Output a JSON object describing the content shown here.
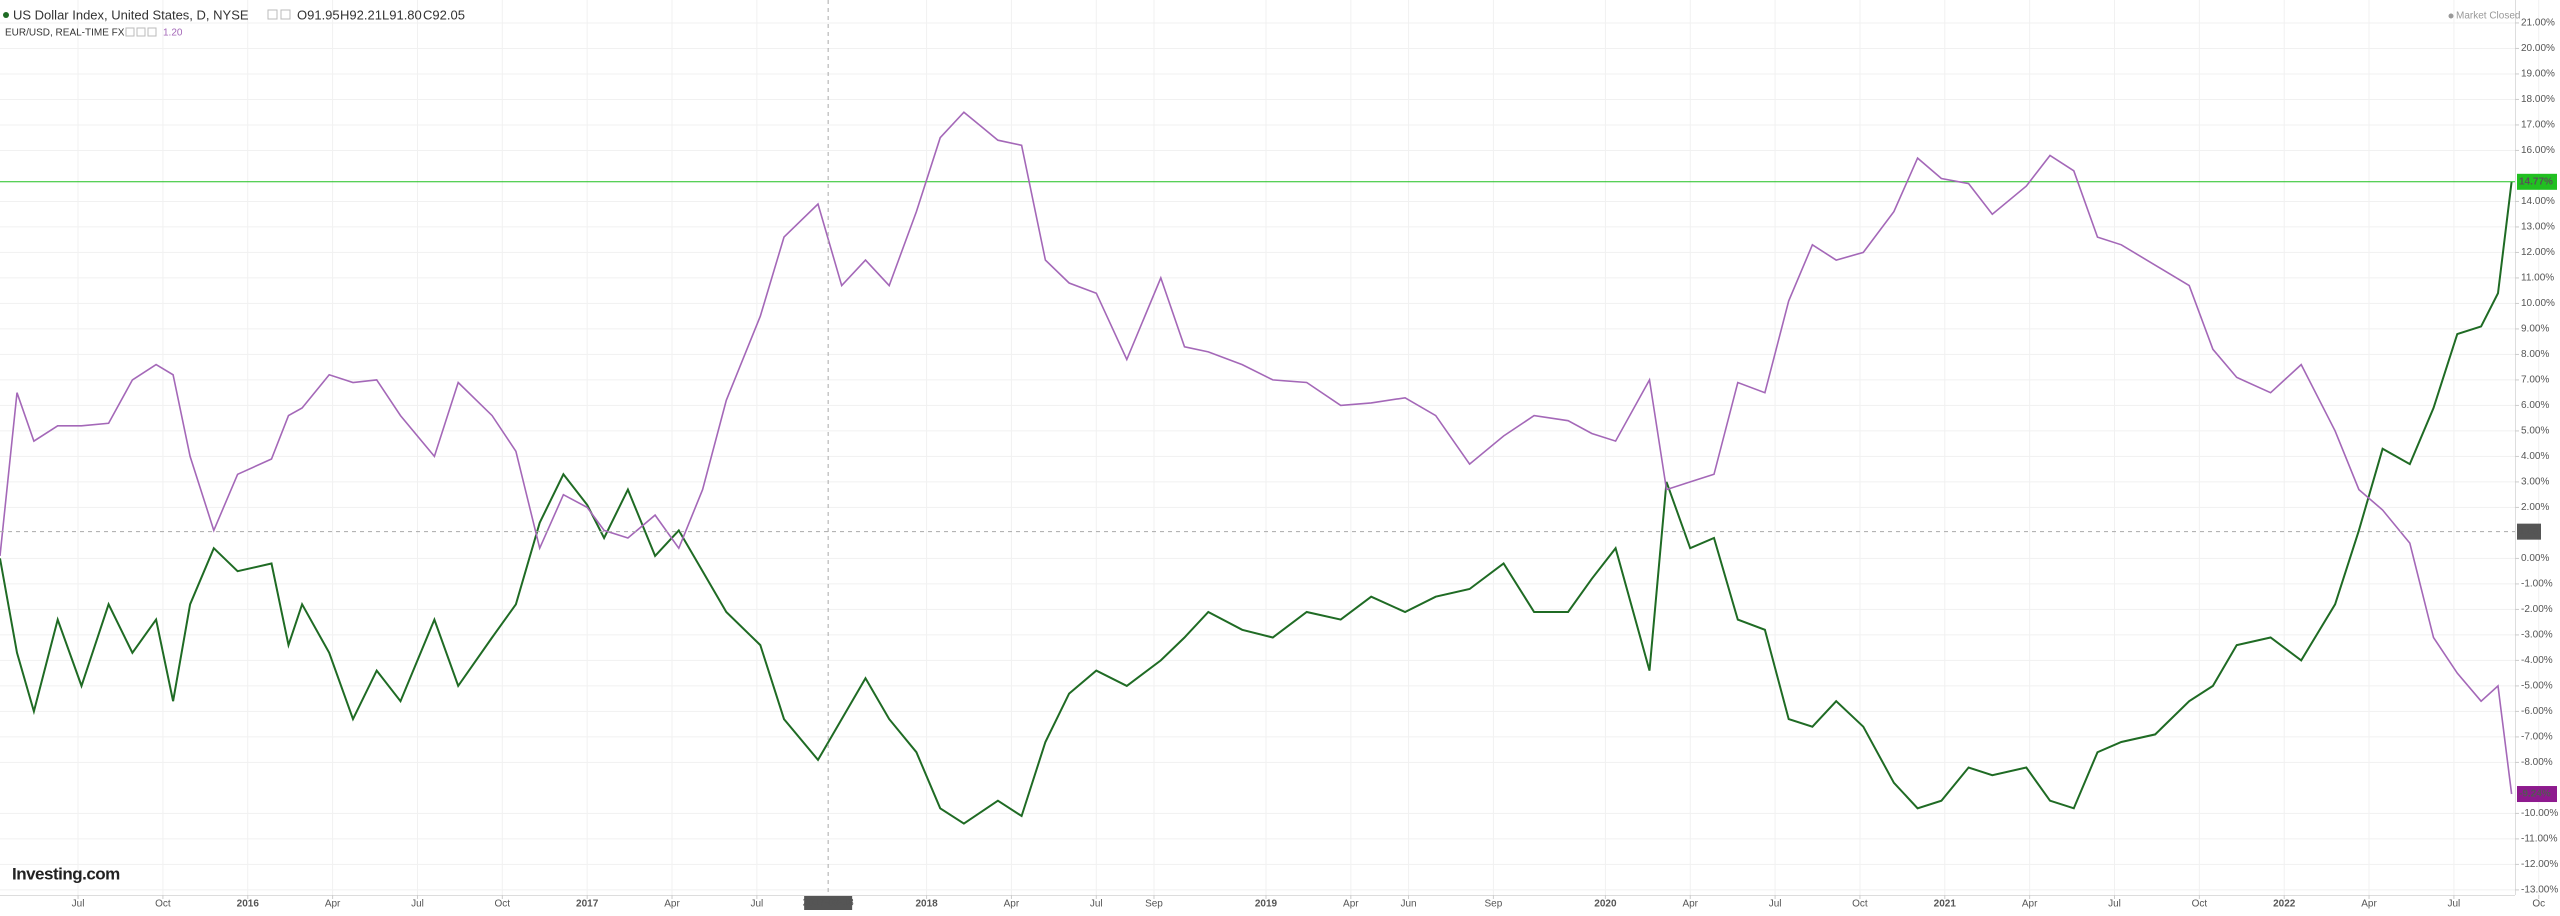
{
  "chart_data": {
    "type": "line",
    "ohlc": [
      "O91.95",
      "H92.21",
      "L91.80",
      "C92.05"
    ],
    "compare_last": "1.20",
    "status": "Market Closed",
    "watermark": "Investing.com",
    "xlim": [
      2015.27,
      2022.68
    ],
    "ylim": [
      -13.2,
      21.9
    ],
    "grid": true,
    "x": [
      2015.27,
      2015.32,
      2015.37,
      2015.44,
      2015.51,
      2015.59,
      2015.66,
      2015.73,
      2015.78,
      2015.83,
      2015.9,
      2015.97,
      2016.07,
      2016.12,
      2016.16,
      2016.24,
      2016.31,
      2016.38,
      2016.45,
      2016.55,
      2016.62,
      2016.72,
      2016.79,
      2016.86,
      2016.93,
      2017.0,
      2017.05,
      2017.12,
      2017.2,
      2017.27,
      2017.34,
      2017.41,
      2017.51,
      2017.58,
      2017.68,
      2017.75,
      2017.82,
      2017.89,
      2017.97,
      2018.04,
      2018.11,
      2018.21,
      2018.28,
      2018.35,
      2018.42,
      2018.5,
      2018.59,
      2018.69,
      2018.76,
      2018.83,
      2018.93,
      2019.02,
      2019.12,
      2019.22,
      2019.31,
      2019.41,
      2019.5,
      2019.6,
      2019.7,
      2019.79,
      2019.89,
      2019.96,
      2020.03,
      2020.13,
      2020.18,
      2020.25,
      2020.32,
      2020.39,
      2020.47,
      2020.54,
      2020.61,
      2020.68,
      2020.76,
      2020.85,
      2020.92,
      2020.99,
      2021.07,
      2021.14,
      2021.24,
      2021.31,
      2021.38,
      2021.45,
      2021.52,
      2021.62,
      2021.72,
      2021.79,
      2021.86,
      2021.96,
      2022.05,
      2022.15,
      2022.22,
      2022.29,
      2022.37,
      2022.44,
      2022.51,
      2022.58,
      2022.63,
      2022.67
    ],
    "series": [
      {
        "name": "US Dollar Index, United States, D, NYSE",
        "color": "#1f6b24",
        "price_label": "14.77%",
        "label_color": "#21c021",
        "values": [
          0,
          -3.7,
          -6.0,
          -2.4,
          -5.0,
          -1.8,
          -3.7,
          -2.4,
          -5.6,
          -1.8,
          0.4,
          -0.5,
          -0.2,
          -3.4,
          -1.8,
          -3.7,
          -6.3,
          -4.4,
          -5.6,
          -2.4,
          -5.0,
          -3.1,
          -1.8,
          1.4,
          3.3,
          2.1,
          0.8,
          2.7,
          0.1,
          1.1,
          -0.5,
          -2.1,
          -3.4,
          -6.3,
          -7.9,
          -6.3,
          -4.7,
          -6.3,
          -7.6,
          -9.8,
          -10.4,
          -9.5,
          -10.1,
          -7.2,
          -5.3,
          -4.4,
          -5.0,
          -4.0,
          -3.1,
          -2.1,
          -2.8,
          -3.1,
          -2.1,
          -2.4,
          -1.5,
          -2.1,
          -1.5,
          -1.2,
          -0.2,
          -2.1,
          -2.1,
          -0.8,
          0.4,
          -4.4,
          3.0,
          0.4,
          0.8,
          -2.4,
          -2.8,
          -6.3,
          -6.6,
          -5.6,
          -6.6,
          -8.8,
          -9.8,
          -9.5,
          -8.2,
          -8.5,
          -8.2,
          -9.5,
          -9.8,
          -7.6,
          -7.2,
          -6.9,
          -5.6,
          -5.0,
          -3.4,
          -3.1,
          -4.0,
          -1.8,
          1.1,
          4.3,
          3.7,
          5.9,
          8.8,
          9.1,
          10.4,
          14.77
        ]
      },
      {
        "name": "EUR/USD, REAL-TIME FX",
        "color": "#a468b8",
        "price_label": "-9.24%",
        "label_color": "#8e1a8e",
        "values": [
          0.1,
          6.5,
          4.6,
          5.2,
          5.2,
          5.3,
          7.0,
          7.6,
          7.2,
          4.0,
          1.1,
          3.3,
          3.9,
          5.6,
          5.9,
          7.2,
          6.9,
          7.0,
          5.6,
          4.0,
          6.9,
          5.6,
          4.2,
          0.4,
          2.5,
          2.0,
          1.1,
          0.8,
          1.7,
          0.4,
          2.7,
          6.2,
          9.5,
          12.6,
          13.9,
          10.7,
          11.7,
          10.7,
          13.6,
          16.5,
          17.5,
          16.4,
          16.2,
          11.7,
          10.8,
          10.4,
          7.8,
          11.0,
          8.3,
          8.1,
          7.6,
          7.0,
          6.9,
          6.0,
          6.1,
          6.3,
          5.6,
          3.7,
          4.8,
          5.6,
          5.4,
          4.9,
          4.6,
          7.0,
          2.7,
          3.0,
          3.3,
          6.9,
          6.5,
          10.1,
          12.3,
          11.7,
          12.0,
          13.6,
          15.7,
          14.9,
          14.7,
          13.5,
          14.6,
          15.8,
          15.2,
          12.6,
          12.3,
          11.5,
          10.7,
          8.2,
          7.1,
          6.5,
          7.6,
          5.0,
          2.7,
          1.9,
          0.6,
          -3.1,
          -4.5,
          -5.6,
          -5.0,
          -9.24
        ]
      }
    ],
    "crosshair": {
      "x": {
        "value": 2017.71,
        "label": "2017-09-18"
      },
      "y": {
        "value": 1.05,
        "label": "1.05"
      }
    },
    "xticks": [
      {
        "value": 2015.5,
        "label": "Jul"
      },
      {
        "value": 2015.75,
        "label": "Oct"
      },
      2016,
      {
        "value": 2016.25,
        "label": "Apr"
      },
      {
        "value": 2016.5,
        "label": "Jul"
      },
      {
        "value": 2016.75,
        "label": "Oct"
      },
      2017,
      {
        "value": 2017.25,
        "label": "Apr"
      },
      {
        "value": 2017.5,
        "label": "Jul"
      },
      2018,
      {
        "value": 2018.25,
        "label": "Apr"
      },
      {
        "value": 2018.5,
        "label": "Jul"
      },
      {
        "value": 2018.67,
        "label": "Sep"
      },
      2019,
      {
        "value": 2019.25,
        "label": "Apr"
      },
      {
        "value": 2019.42,
        "label": "Jun"
      },
      {
        "value": 2019.67,
        "label": "Sep"
      },
      2020,
      {
        "value": 2020.25,
        "label": "Apr"
      },
      {
        "value": 2020.5,
        "label": "Jul"
      },
      {
        "value": 2020.75,
        "label": "Oct"
      },
      2021,
      {
        "value": 2021.25,
        "label": "Apr"
      },
      {
        "value": 2021.5,
        "label": "Jul"
      },
      {
        "value": 2021.75,
        "label": "Oct"
      },
      2022,
      {
        "value": 2022.25,
        "label": "Apr"
      },
      {
        "value": 2022.5,
        "label": "Jul"
      },
      {
        "value": 2022.75,
        "label": "Oc"
      }
    ],
    "yticks": [
      {
        "value": 21,
        "label": "21.00%"
      },
      {
        "value": 20,
        "label": "20.00%"
      },
      {
        "value": 19,
        "label": "19.00%"
      },
      {
        "value": 18,
        "label": "18.00%"
      },
      {
        "value": 17,
        "label": "17.00%"
      },
      {
        "value": 16,
        "label": "16.00%"
      },
      {
        "value": 14,
        "label": "14.00%"
      },
      {
        "value": 13,
        "label": "13.00%"
      },
      {
        "value": 12,
        "label": "12.00%"
      },
      {
        "value": 11,
        "label": "11.00%"
      },
      {
        "value": 10,
        "label": "10.00%"
      },
      {
        "value": 9,
        "label": "9.00%"
      },
      {
        "value": 8,
        "label": "8.00%"
      },
      {
        "value": 7,
        "label": "7.00%"
      },
      {
        "value": 6,
        "label": "6.00%"
      },
      {
        "value": 5,
        "label": "5.00%"
      },
      {
        "value": 4,
        "label": "4.00%"
      },
      {
        "value": 3,
        "label": "3.00%"
      },
      {
        "value": 2,
        "label": "2.00%"
      },
      {
        "value": 0,
        "label": "0.00%"
      },
      {
        "value": -1,
        "label": "-1.00%"
      },
      {
        "value": -2,
        "label": "-2.00%"
      },
      {
        "value": -3,
        "label": "-3.00%"
      },
      {
        "value": -4,
        "label": "-4.00%"
      },
      {
        "value": -5,
        "label": "-5.00%"
      },
      {
        "value": -6,
        "label": "-6.00%"
      },
      {
        "value": -7,
        "label": "-7.00%"
      },
      {
        "value": -8,
        "label": "-8.00%"
      },
      {
        "value": -10,
        "label": "-10.00%"
      },
      {
        "value": -11,
        "label": "-11.00%"
      },
      {
        "value": -12,
        "label": "-12.00%"
      },
      {
        "value": -13,
        "label": "-13.00%"
      }
    ]
  }
}
